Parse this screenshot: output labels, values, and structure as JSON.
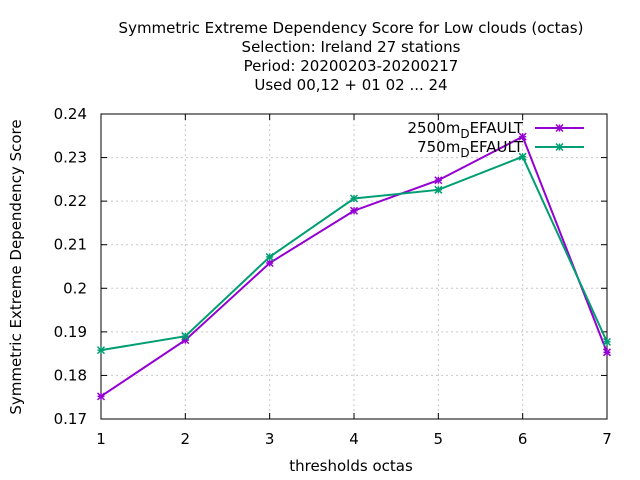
{
  "chart_data": {
    "type": "line",
    "title_lines": [
      "Symmetric Extreme Dependency Score  for Low clouds (octas)",
      "Selection: Ireland     27 stations",
      "Period: 20200203-20200217",
      "Used  00,12  + 01 02 ... 24"
    ],
    "xlabel": "thresholds octas",
    "ylabel": "Symmetric Extreme Dependency Score",
    "x": [
      1,
      2,
      3,
      4,
      5,
      6,
      7
    ],
    "xlim": [
      1,
      7
    ],
    "ylim": [
      0.17,
      0.24
    ],
    "x_ticks": [
      "1",
      "2",
      "3",
      "4",
      "5",
      "6",
      "7"
    ],
    "y_ticks": [
      "0.17",
      "0.18",
      "0.19",
      "0.2",
      "0.21",
      "0.22",
      "0.23",
      "0.24"
    ],
    "grid": true,
    "legend_position": "top-right",
    "series": [
      {
        "name": "2500m",
        "name_sub": "D",
        "name_rest": "EFAULT",
        "color": "#9400d3",
        "values": [
          0.1752,
          0.1881,
          0.2058,
          0.2178,
          0.2248,
          0.2348,
          0.1853
        ]
      },
      {
        "name": "750m",
        "name_sub": "D",
        "name_rest": "EFAULT",
        "color": "#009e73",
        "values": [
          0.1858,
          0.189,
          0.2072,
          0.2206,
          0.2226,
          0.2302,
          0.1877
        ]
      }
    ]
  }
}
